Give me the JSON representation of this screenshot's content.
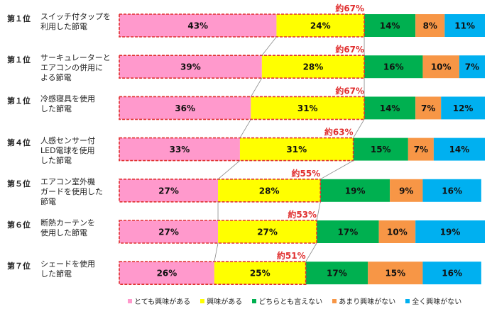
{
  "chart_data": {
    "type": "bar",
    "orientation": "horizontal-stacked-100",
    "categories": [
      {
        "rank": "第１位",
        "label": "スイッチ付タップを利用した節電",
        "lines": [
          "スイッチ付タップを",
          "利用した節電"
        ]
      },
      {
        "rank": "第１位",
        "label": "サーキュレーターとエアコンの併用による節電",
        "lines": [
          "サーキュレーターと",
          "エアコンの併用に",
          "よる節電"
        ]
      },
      {
        "rank": "第１位",
        "label": "冷感寝具を使用した節電",
        "lines": [
          "冷感寝具を使用",
          "した節電"
        ]
      },
      {
        "rank": "第４位",
        "label": "人感センサー付LED電球を使用した節電",
        "lines": [
          "人感センサー付",
          "LED電球を使用",
          "した節電"
        ]
      },
      {
        "rank": "第５位",
        "label": "エアコン室外機ガードを使用した節電",
        "lines": [
          "エアコン室外機",
          "ガードを使用した",
          "節電"
        ]
      },
      {
        "rank": "第６位",
        "label": "断熱カーテンを使用した節電",
        "lines": [
          "断熱カーテンを",
          "使用した節電"
        ]
      },
      {
        "rank": "第７位",
        "label": "シェードを使用した節電",
        "lines": [
          "シェードを使用",
          "した節電"
        ]
      }
    ],
    "series": [
      {
        "name": "とても興味がある",
        "color": "#ff99cc",
        "values": [
          43,
          39,
          36,
          33,
          27,
          27,
          26
        ]
      },
      {
        "name": "興味がある",
        "color": "#ffff00",
        "values": [
          24,
          28,
          31,
          31,
          28,
          27,
          25
        ]
      },
      {
        "name": "どちらとも言えない",
        "color": "#00b050",
        "values": [
          14,
          16,
          14,
          15,
          19,
          17,
          17
        ]
      },
      {
        "name": "あまり興味がない",
        "color": "#f79646",
        "values": [
          8,
          10,
          7,
          7,
          9,
          10,
          15
        ]
      },
      {
        "name": "全く興味がない",
        "color": "#00b0f0",
        "values": [
          11,
          7,
          12,
          14,
          16,
          19,
          16
        ]
      }
    ],
    "annotations": [
      "約67%",
      "約67%",
      "約67%",
      "約63%",
      "約55%",
      "約53%",
      "約51%"
    ],
    "value_suffix": "%",
    "xlim": [
      0,
      100
    ],
    "legend_position": "bottom",
    "highlight_color": "#e03030"
  }
}
